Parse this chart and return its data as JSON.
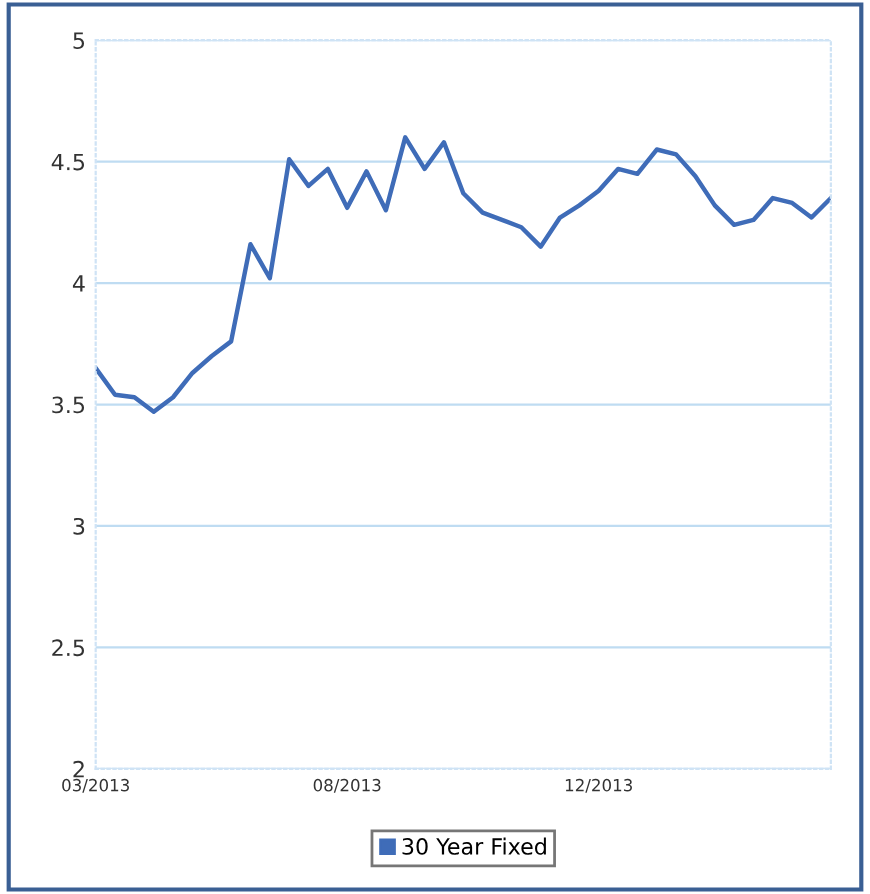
{
  "chart_data": {
    "type": "line",
    "categories": [
      "03/2013",
      null,
      null,
      null,
      null,
      null,
      null,
      null,
      null,
      null,
      null,
      null,
      null,
      "08/2013",
      null,
      null,
      null,
      null,
      null,
      null,
      null,
      null,
      null,
      null,
      null,
      null,
      "12/2013",
      null,
      null,
      null,
      null,
      null,
      null,
      null,
      null,
      null,
      null,
      null,
      null
    ],
    "series": [
      {
        "name": "30 Year Fixed",
        "color": "#3f6cb8",
        "values": [
          3.65,
          3.54,
          3.53,
          3.47,
          3.53,
          3.63,
          3.7,
          3.76,
          4.16,
          4.02,
          4.51,
          4.4,
          4.47,
          4.31,
          4.46,
          4.3,
          4.6,
          4.47,
          4.58,
          4.37,
          4.29,
          4.26,
          4.23,
          4.15,
          4.27,
          4.32,
          4.38,
          4.47,
          4.45,
          4.55,
          4.53,
          4.44,
          4.32,
          4.24,
          4.26,
          4.35,
          4.33,
          4.27,
          4.35
        ]
      }
    ],
    "ylim": [
      2,
      5
    ],
    "yticks": [
      2,
      2.5,
      3,
      3.5,
      4,
      4.5,
      5
    ],
    "grid": "y",
    "legend": "bottom",
    "marker": "none",
    "line_style": "solid"
  }
}
